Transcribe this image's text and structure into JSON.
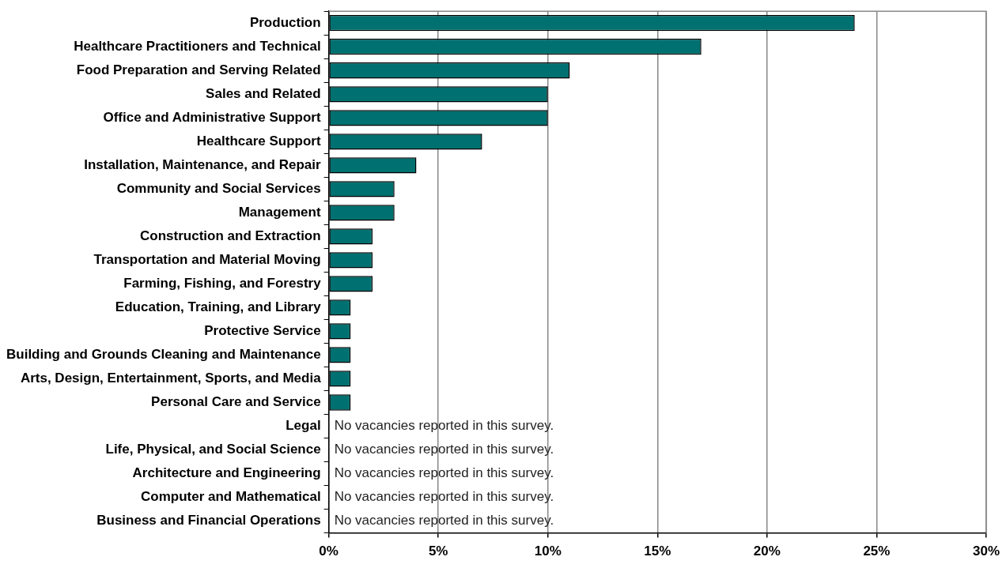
{
  "chart_data": {
    "type": "bar",
    "orientation": "horizontal",
    "categories": [
      "Production",
      "Healthcare Practitioners and Technical",
      "Food Preparation and Serving Related",
      "Sales and Related",
      "Office and Administrative Support",
      "Healthcare Support",
      "Installation, Maintenance, and Repair",
      "Community and Social Services",
      "Management",
      "Construction and Extraction",
      "Transportation and Material Moving",
      "Farming, Fishing, and Forestry",
      "Education, Training, and Library",
      "Protective Service",
      "Building and Grounds Cleaning and Maintenance",
      "Arts, Design, Entertainment, Sports, and Media",
      "Personal Care and Service",
      "Legal",
      "Life, Physical, and Social Science",
      "Architecture and Engineering",
      "Computer and Mathematical",
      "Business and Financial Operations"
    ],
    "values": [
      24,
      17,
      11,
      10,
      10,
      7,
      4,
      3,
      3,
      2,
      2,
      2,
      1,
      1,
      1,
      1,
      1,
      0,
      0,
      0,
      0,
      0
    ],
    "color": "#007070",
    "xlim": [
      0,
      30
    ],
    "xticks": [
      {
        "value": 0,
        "label": "0%"
      },
      {
        "value": 5,
        "label": "5%"
      },
      {
        "value": 10,
        "label": "10%"
      },
      {
        "value": 15,
        "label": "15%"
      },
      {
        "value": 20,
        "label": "20%"
      },
      {
        "value": 25,
        "label": "25%"
      },
      {
        "value": 30,
        "label": "30%"
      }
    ],
    "grid": "x",
    "annotations": [
      "No vacancies reported in this survey.",
      "No vacancies reported in this survey.",
      "No vacancies reported in this survey.",
      "No vacancies reported in this survey.",
      "No vacancies reported in this survey."
    ]
  }
}
